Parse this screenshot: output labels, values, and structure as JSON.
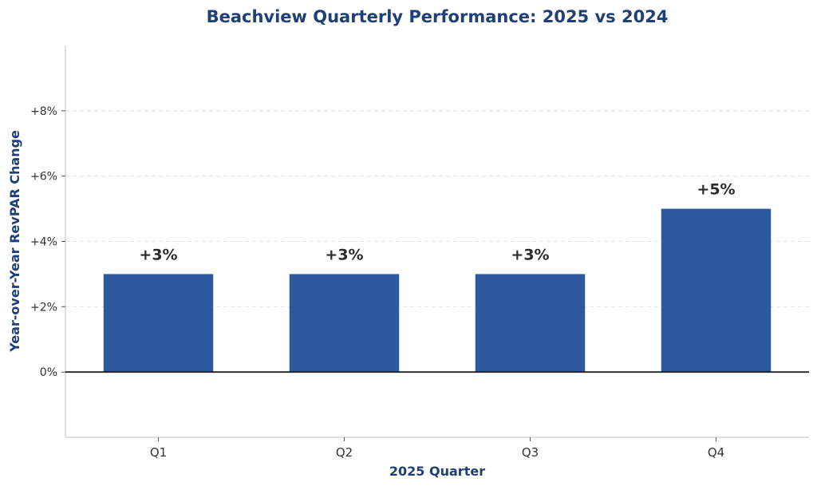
{
  "chart_data": {
    "type": "bar",
    "title": "Beachview Quarterly Performance: 2025 vs 2024",
    "xlabel": "2025 Quarter",
    "ylabel": "Year-over-Year RevPAR Change",
    "categories": [
      "Q1",
      "Q2",
      "Q3",
      "Q4"
    ],
    "values": [
      3,
      3,
      3,
      5
    ],
    "data_labels": [
      "+3%",
      "+3%",
      "+3%",
      "+5%"
    ],
    "ylim": [
      -2,
      10
    ],
    "yticks": [
      0,
      2,
      4,
      6,
      8
    ],
    "ytick_labels": [
      "0%",
      "+2%",
      "+4%",
      "+6%",
      "+8%"
    ],
    "grid": true,
    "legend": "none"
  },
  "colors": {
    "bar": "#2c589e",
    "title": "#1f3f78",
    "axis_label": "#1f3f78",
    "zero_line": "#222222",
    "spine": "#cccccc",
    "grid": "#e3e3e3"
  }
}
